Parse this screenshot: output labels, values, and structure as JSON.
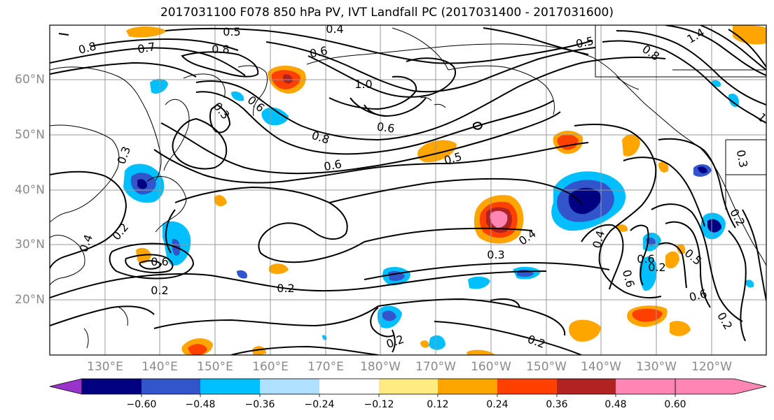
{
  "title": "2017031100 F078 850 hPa PV, IVT Landfall PC (2017031400 - 2017031600)",
  "lat_labels": [
    "60°N",
    "50°N",
    "40°N",
    "30°N",
    "20°N"
  ],
  "lon_labels": [
    "130°E",
    "140°E",
    "150°E",
    "160°E",
    "170°E",
    "180°W",
    "170°W",
    "160°W",
    "150°W",
    "140°W",
    "130°W",
    "120°W"
  ],
  "colorbar": {
    "colors": [
      "#9933cc",
      "#000080",
      "#3355cc",
      "#00bfff",
      "#b0e0ff",
      "#ffffff",
      "#ffeb80",
      "#ffa500",
      "#ff4000",
      "#b22222",
      "#ff85b5"
    ],
    "tick_labels": [
      "−0.60",
      "−0.48",
      "−0.36",
      "−0.24",
      "−0.12",
      "0.12",
      "0.24",
      "0.36",
      "0.48",
      "0.60"
    ]
  },
  "contour_labels": [
    "0.5",
    "0.4",
    "0.8",
    "0.7",
    "0.8",
    "0.6",
    "0.5",
    "1.4",
    "0.8",
    "1.0",
    "0.6",
    "0.6",
    "0.3",
    "0.8",
    "0.6",
    "0.5",
    "0.3",
    "0.2",
    "0.4",
    "0.6",
    "0.2",
    "0.2",
    "0.4",
    "0.3",
    "0.4",
    "0.2",
    "0.6",
    "0.2",
    "0.5",
    "0.6",
    "0.3",
    "0.2",
    "1",
    "0.2",
    "0.2",
    "0.6"
  ],
  "colors": {
    "contour": "#000000",
    "grid": "#999999",
    "coast": "#000000"
  }
}
